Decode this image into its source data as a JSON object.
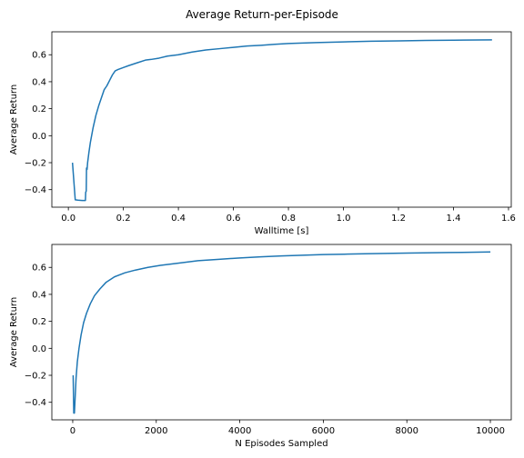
{
  "figure": {
    "suptitle": "Average Return-per-Episode"
  },
  "chart_data": [
    {
      "type": "line",
      "xlabel": "Walltime [s]",
      "ylabel": "Average Return",
      "xlim": [
        -0.06,
        1.61
      ],
      "ylim": [
        -0.53,
        0.77
      ],
      "xticks": [
        0.0,
        0.2,
        0.4,
        0.6,
        0.8,
        1.0,
        1.2,
        1.4,
        1.6
      ],
      "xtick_labels": [
        "0.0",
        "0.2",
        "0.4",
        "0.6",
        "0.8",
        "1.0",
        "1.2",
        "1.4",
        "1.6"
      ],
      "yticks": [
        -0.4,
        -0.2,
        0.0,
        0.2,
        0.4,
        0.6
      ],
      "ytick_labels": [
        "−0.4",
        "−0.2",
        "0.0",
        "0.2",
        "0.4",
        "0.6"
      ],
      "grid": false,
      "color": "#1f77b4",
      "series": [
        {
          "x": [
            0.015,
            0.025,
            0.035,
            0.05,
            0.062,
            0.063,
            0.065,
            0.066,
            0.068,
            0.07,
            0.075,
            0.08,
            0.09,
            0.1,
            0.11,
            0.12,
            0.13,
            0.14,
            0.15,
            0.16,
            0.17,
            0.18,
            0.2,
            0.22,
            0.25,
            0.28,
            0.3,
            0.33,
            0.36,
            0.4,
            0.45,
            0.5,
            0.55,
            0.6,
            0.65,
            0.7,
            0.75,
            0.8,
            0.9,
            1.0,
            1.1,
            1.2,
            1.3,
            1.4,
            1.54
          ],
          "y": [
            -0.2,
            -0.475,
            -0.478,
            -0.48,
            -0.48,
            -0.42,
            -0.41,
            -0.24,
            -0.25,
            -0.2,
            -0.12,
            -0.05,
            0.06,
            0.15,
            0.22,
            0.28,
            0.34,
            0.37,
            0.41,
            0.45,
            0.48,
            0.49,
            0.505,
            0.52,
            0.54,
            0.56,
            0.565,
            0.575,
            0.59,
            0.6,
            0.62,
            0.635,
            0.645,
            0.655,
            0.665,
            0.67,
            0.677,
            0.683,
            0.69,
            0.695,
            0.7,
            0.703,
            0.706,
            0.708,
            0.71
          ]
        }
      ]
    },
    {
      "type": "line",
      "xlabel": "N Episodes Sampled",
      "ylabel": "Average Return",
      "xlim": [
        -500,
        10500
      ],
      "ylim": [
        -0.53,
        0.77
      ],
      "xticks": [
        0,
        2000,
        4000,
        6000,
        8000,
        10000
      ],
      "xtick_labels": [
        "0",
        "2000",
        "4000",
        "6000",
        "8000",
        "10000"
      ],
      "yticks": [
        -0.4,
        -0.2,
        0.0,
        0.2,
        0.4,
        0.6
      ],
      "ytick_labels": [
        "−0.4",
        "−0.2",
        "0.0",
        "0.2",
        "0.4",
        "0.6"
      ],
      "grid": false,
      "color": "#1f77b4",
      "series": [
        {
          "x": [
            10,
            25,
            40,
            60,
            80,
            110,
            150,
            200,
            260,
            330,
            420,
            520,
            650,
            800,
            1000,
            1250,
            1500,
            1800,
            2100,
            2500,
            3000,
            3500,
            4000,
            4500,
            5000,
            5500,
            6000,
            6500,
            7000,
            8000,
            9000,
            10000
          ],
          "y": [
            -0.2,
            -0.48,
            -0.48,
            -0.35,
            -0.22,
            -0.1,
            0.0,
            0.1,
            0.19,
            0.26,
            0.33,
            0.39,
            0.44,
            0.49,
            0.53,
            0.56,
            0.58,
            0.6,
            0.615,
            0.63,
            0.65,
            0.66,
            0.67,
            0.678,
            0.685,
            0.69,
            0.695,
            0.698,
            0.701,
            0.706,
            0.71,
            0.714
          ]
        }
      ]
    }
  ]
}
